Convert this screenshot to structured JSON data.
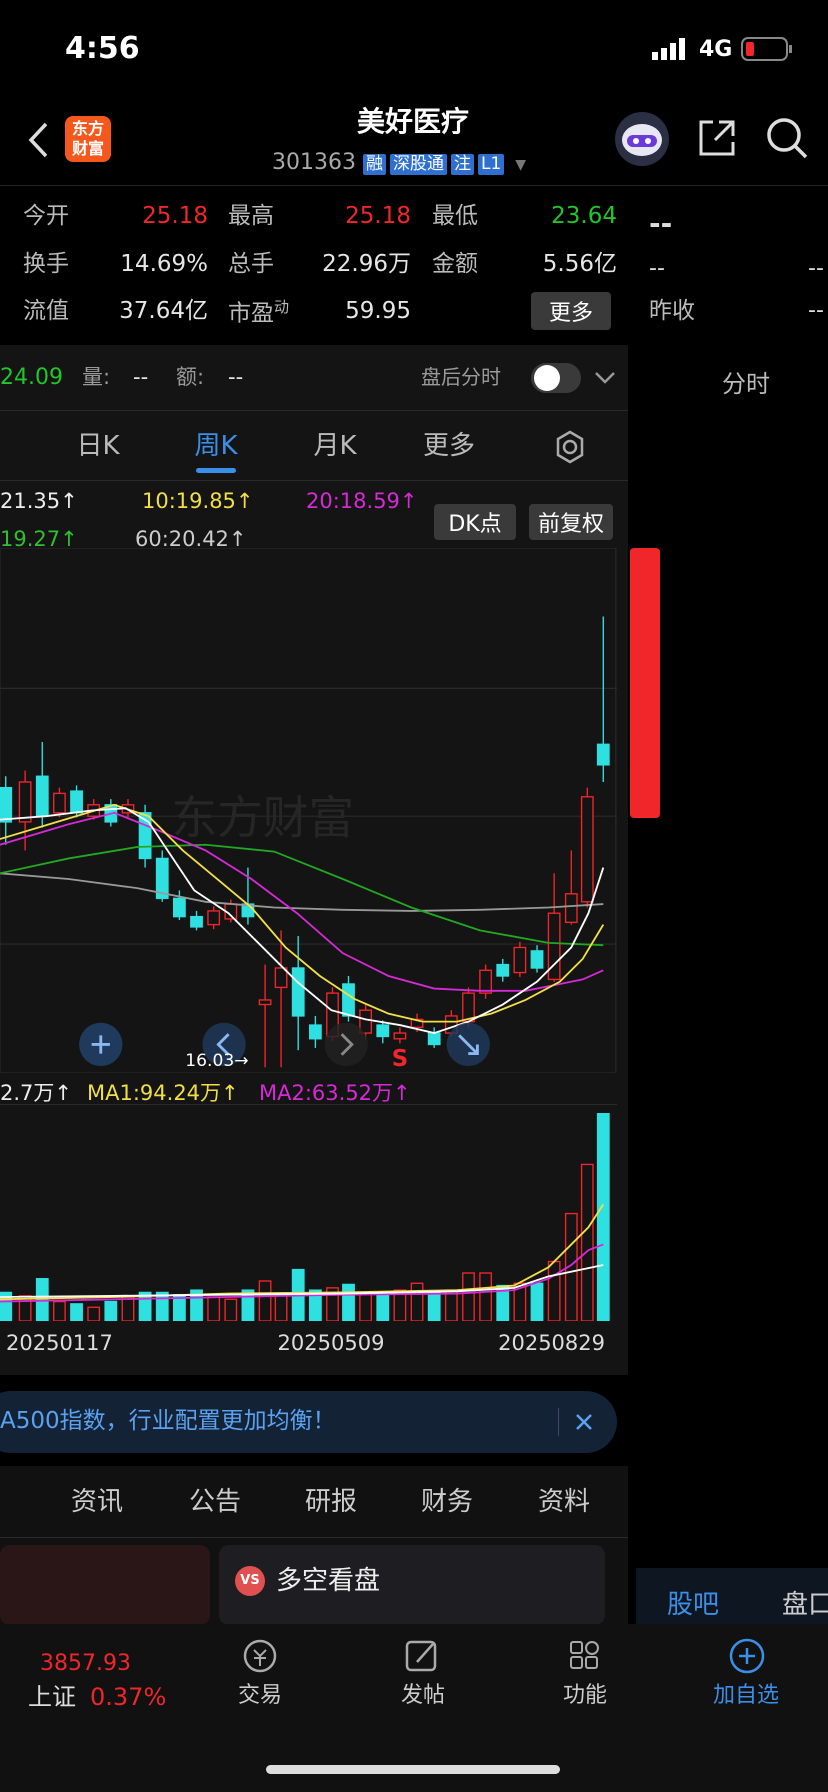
{
  "status_bar": {
    "time": "4:56",
    "network": "4G"
  },
  "header": {
    "logo_top": "东方",
    "logo_bottom": "财富",
    "title": "美好医疗",
    "code": "301363",
    "tags": [
      "融",
      "深股通",
      "注",
      "L1"
    ]
  },
  "quote": {
    "open_label": "今开",
    "open": "25.18",
    "high_label": "最高",
    "high": "25.18",
    "low_label": "最低",
    "low": "23.64",
    "turnover_label": "换手",
    "turnover": "14.69%",
    "volume_label": "总手",
    "volume": "22.96万",
    "amount_label": "金额",
    "amount": "5.56亿",
    "float_cap_label": "流值",
    "float_cap": "37.64亿",
    "pe_label": "市盈",
    "pe_sup": "动",
    "pe": "59.95",
    "more": "更多"
  },
  "side_quote": {
    "price": "--",
    "change": "--",
    "change2": "--",
    "prev_close_label": "昨收",
    "prev_close": "--"
  },
  "after_hours": {
    "price": "24.09",
    "volume_label": "量:",
    "volume": "--",
    "amount_label": "额:",
    "amount": "--",
    "toggle_label": "盘后分时"
  },
  "side_tab": "分时",
  "period_tabs": [
    "日K",
    "周K",
    "月K",
    "更多"
  ],
  "ma_legend": [
    "21.35↑",
    "10:19.85↑",
    "20:18.59↑",
    "19.27↑",
    "60:20.42↑"
  ],
  "buttons": [
    "DK点",
    "前复权"
  ],
  "chart_labels": {
    "watermark": "东方财富",
    "low_marker": "16.03→",
    "signal": "S"
  },
  "volume_legend": [
    "2.7万↑",
    "MA1:94.24万↑",
    "MA2:63.52万↑"
  ],
  "dates": [
    "20250117",
    "20250509",
    "20250829"
  ],
  "banner": "A500指数，行业配置更加均衡！",
  "info_tabs": [
    "资讯",
    "公告",
    "研报",
    "财务",
    "资料"
  ],
  "card": {
    "badge": "VS",
    "title": "多空看盘"
  },
  "side_bottom_tabs": [
    "股吧",
    "盘口"
  ],
  "bottom_nav": {
    "index_value": "3857.93",
    "index_name": "上证",
    "index_change": "0.37%",
    "items": [
      "交易",
      "发帖",
      "功能",
      "加自选"
    ]
  }
}
